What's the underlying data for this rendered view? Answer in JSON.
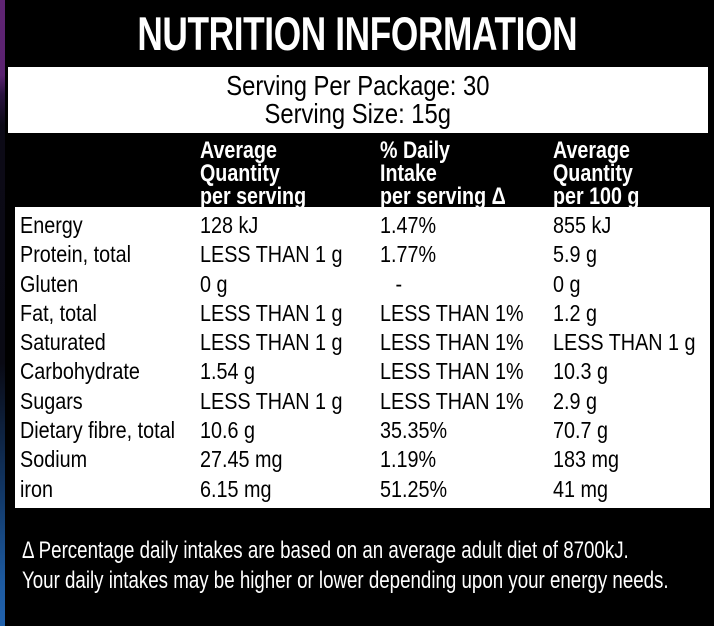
{
  "label": {
    "title": "NUTRITION INFORMATION",
    "serving_per_package": "Serving Per Package: 30",
    "serving_size": "Serving Size: 15g"
  },
  "table": {
    "type": "table",
    "columns": [
      {
        "lines": [
          "Average",
          "Quantity",
          "per serving"
        ]
      },
      {
        "lines": [
          "% Daily",
          "Intake",
          "per serving Δ"
        ]
      },
      {
        "lines": [
          "Average",
          "Quantity",
          "per 100 g"
        ]
      }
    ],
    "rows": [
      {
        "name": "Energy",
        "per_serving": "128 kJ",
        "daily_intake": "1.47%",
        "per_100g": "855 kJ"
      },
      {
        "name": "Protein, total",
        "per_serving": "LESS THAN 1 g",
        "daily_intake": "1.77%",
        "per_100g": "5.9 g"
      },
      {
        "name": "Gluten",
        "per_serving": "0 g",
        "daily_intake": "-",
        "per_100g": "0 g"
      },
      {
        "name": "Fat, total",
        "per_serving": "LESS THAN 1 g",
        "daily_intake": "LESS THAN 1%",
        "per_100g": "1.2 g"
      },
      {
        "name": "Saturated",
        "per_serving": "LESS THAN 1 g",
        "daily_intake": "LESS THAN 1%",
        "per_100g": "LESS THAN 1 g"
      },
      {
        "name": "Carbohydrate",
        "per_serving": "1.54 g",
        "daily_intake": "LESS THAN 1%",
        "per_100g": "10.3 g"
      },
      {
        "name": "Sugars",
        "per_serving": "LESS THAN 1 g",
        "daily_intake": "LESS THAN 1%",
        "per_100g": "2.9 g"
      },
      {
        "name": "Dietary fibre, total",
        "per_serving": "10.6 g",
        "daily_intake": "35.35%",
        "per_100g": "70.7 g"
      },
      {
        "name": "Sodium",
        "per_serving": "27.45 mg",
        "daily_intake": "1.19%",
        "per_100g": "183 mg"
      },
      {
        "name": "iron",
        "per_serving": "6.15 mg",
        "daily_intake": "51.25%",
        "per_100g": "41 mg"
      }
    ]
  },
  "footnote": {
    "lines": [
      "Δ Percentage daily intakes are based on an average adult diet of 8700kJ.",
      "Your daily intakes may be higher or lower depending upon your energy needs."
    ]
  },
  "colors": {
    "label_background": "#000000",
    "panel_background": "#ffffff",
    "text_on_dark": "#ffffff",
    "text_on_light": "#000000",
    "edge_gradient_top": "#5f2473",
    "edge_gradient_bottom": "#2162ad"
  }
}
